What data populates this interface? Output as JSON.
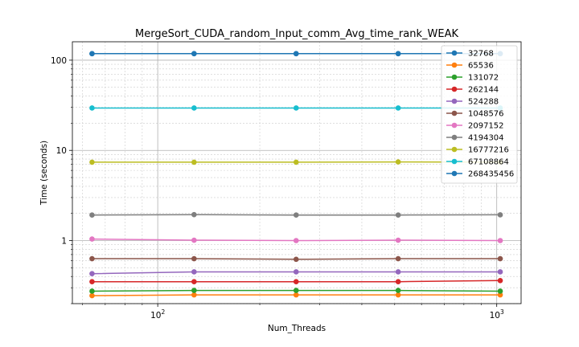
{
  "chart_data": {
    "type": "line",
    "title": "MergeSort_CUDA_random_Input_comm_Avg_time_rank_WEAK",
    "xlabel": "Num_Threads",
    "ylabel": "Time (seconds)",
    "xscale": "log",
    "yscale": "log",
    "xlim": [
      56,
      1180
    ],
    "ylim": [
      0.2,
      160
    ],
    "grid": true,
    "legend_position": "top-right",
    "x": [
      64,
      128,
      256,
      512,
      1024
    ],
    "x_ticks": [
      {
        "value": 100,
        "base": "10",
        "exp": "2"
      },
      {
        "value": 1000,
        "base": "10",
        "exp": "3"
      }
    ],
    "y_ticks": [
      {
        "value": 1,
        "label": "1"
      },
      {
        "value": 10,
        "label": "10"
      },
      {
        "value": 100,
        "label": "100"
      }
    ],
    "series": [
      {
        "name": "32768",
        "color": "#1f77b4",
        "values": [
          118,
          118,
          118,
          118,
          118
        ]
      },
      {
        "name": "65536",
        "color": "#ff7f0e",
        "values": [
          0.245,
          0.25,
          0.25,
          0.25,
          0.25
        ]
      },
      {
        "name": "131072",
        "color": "#2ca02c",
        "values": [
          0.275,
          0.28,
          0.28,
          0.28,
          0.275
        ]
      },
      {
        "name": "262144",
        "color": "#d62728",
        "values": [
          0.35,
          0.35,
          0.35,
          0.35,
          0.36
        ]
      },
      {
        "name": "524288",
        "color": "#9467bd",
        "values": [
          0.43,
          0.45,
          0.45,
          0.45,
          0.45
        ]
      },
      {
        "name": "1048576",
        "color": "#8c564b",
        "values": [
          0.63,
          0.63,
          0.62,
          0.63,
          0.63
        ]
      },
      {
        "name": "2097152",
        "color": "#e377c2",
        "values": [
          1.04,
          1.01,
          1.0,
          1.01,
          1.0
        ]
      },
      {
        "name": "4194304",
        "color": "#7f7f7f",
        "values": [
          1.92,
          1.94,
          1.92,
          1.92,
          1.93
        ]
      },
      {
        "name": "16777216",
        "color": "#bcbd22",
        "values": [
          7.4,
          7.4,
          7.4,
          7.45,
          7.4
        ]
      },
      {
        "name": "67108864",
        "color": "#17becf",
        "values": [
          29.5,
          29.5,
          29.5,
          29.5,
          29.5
        ]
      },
      {
        "name": "268435456",
        "color": "#1f77b4",
        "values": [
          118,
          118,
          118,
          118,
          118
        ]
      }
    ]
  }
}
